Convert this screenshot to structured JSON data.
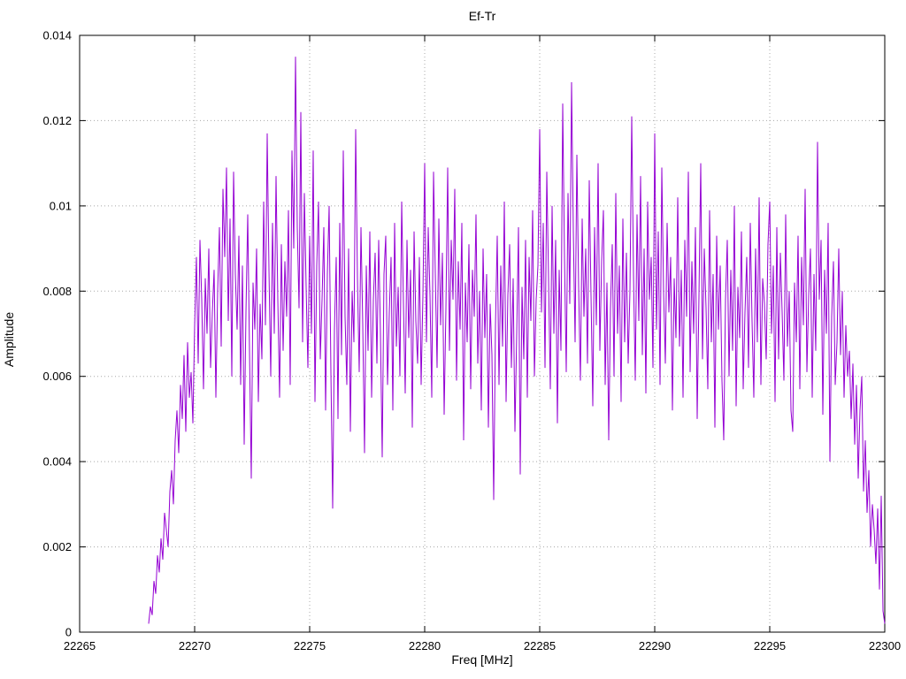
{
  "chart_data": {
    "type": "line",
    "title": "Ef-Tr",
    "xlabel": "Freq [MHz]",
    "ylabel": "Amplitude",
    "xlim": [
      22265,
      22300
    ],
    "ylim": [
      0,
      0.014
    ],
    "x_ticks": [
      22265,
      22270,
      22275,
      22280,
      22285,
      22290,
      22295,
      22300
    ],
    "x_tick_labels": [
      "22265",
      "22270",
      "22275",
      "22280",
      "22285",
      "22290",
      "22295",
      "22300"
    ],
    "y_ticks": [
      0,
      0.002,
      0.004,
      0.006,
      0.008,
      0.01,
      0.012,
      0.014
    ],
    "y_tick_labels": [
      "0",
      "0.002",
      "0.004",
      "0.006",
      "0.008",
      "0.01",
      "0.012",
      "0.014"
    ],
    "grid": true,
    "legend": "none",
    "line_color": "#9400d3",
    "x_start": 22268,
    "x_end": 22300,
    "values_scale": 0.0001,
    "values": [
      2,
      6,
      4,
      12,
      9,
      18,
      14,
      22,
      17,
      28,
      24,
      20,
      33,
      38,
      30,
      45,
      52,
      42,
      58,
      50,
      65,
      47,
      68,
      55,
      61,
      49,
      72,
      88,
      63,
      92,
      78,
      57,
      83,
      70,
      90,
      62,
      75,
      85,
      55,
      80,
      95,
      67,
      104,
      88,
      109,
      73,
      97,
      60,
      108,
      84,
      71,
      93,
      58,
      86,
      44,
      75,
      98,
      66,
      36,
      82,
      71,
      90,
      54,
      77,
      64,
      101,
      72,
      117,
      85,
      60,
      96,
      70,
      107,
      78,
      55,
      91,
      66,
      87,
      74,
      99,
      58,
      113,
      90,
      135,
      95,
      76,
      122,
      68,
      103,
      81,
      62,
      93,
      70,
      113,
      54,
      86,
      101,
      64,
      78,
      95,
      52,
      84,
      100,
      61,
      29,
      71,
      88,
      50,
      96,
      65,
      113,
      74,
      58,
      90,
      47,
      80,
      68,
      118,
      83,
      61,
      95,
      72,
      42,
      86,
      66,
      94,
      55,
      78,
      89,
      63,
      92,
      70,
      41,
      84,
      93,
      58,
      75,
      88,
      52,
      96,
      67,
      81,
      60,
      101,
      77,
      56,
      92,
      69,
      85,
      48,
      94,
      73,
      63,
      88,
      58,
      79,
      110,
      68,
      95,
      79,
      55,
      108,
      84,
      62,
      97,
      72,
      89,
      51,
      76,
      109,
      66,
      92,
      78,
      104,
      59,
      87,
      71,
      96,
      45,
      82,
      68,
      91,
      57,
      85,
      74,
      98,
      63,
      80,
      52,
      90,
      69,
      84,
      48,
      77,
      65,
      31,
      72,
      93,
      58,
      86,
      67,
      101,
      54,
      79,
      91,
      62,
      83,
      47,
      70,
      95,
      37,
      81,
      64,
      92,
      55,
      88,
      73,
      99,
      60,
      78,
      86,
      118,
      75,
      96,
      62,
      108,
      83,
      57,
      100,
      70,
      92,
      49,
      85,
      66,
      124,
      88,
      61,
      103,
      77,
      129,
      94,
      68,
      112,
      81,
      59,
      97,
      74,
      90,
      63,
      106,
      79,
      53,
      95,
      72,
      110,
      66,
      87,
      99,
      58,
      82,
      45,
      76,
      91,
      60,
      103,
      70,
      86,
      54,
      97,
      68,
      89,
      63,
      80,
      121,
      84,
      59,
      98,
      73,
      107,
      65,
      90,
      56,
      101,
      78,
      88,
      62,
      117,
      71,
      94,
      58,
      109,
      80,
      63,
      96,
      75,
      88,
      52,
      83,
      69,
      102,
      67,
      85,
      55,
      92,
      74,
      108,
      61,
      87,
      70,
      95,
      50,
      79,
      110,
      64,
      90,
      76,
      57,
      99,
      68,
      84,
      48,
      93,
      71,
      86,
      59,
      45,
      78,
      92,
      60,
      85,
      66,
      100,
      53,
      81,
      69,
      94,
      57,
      75,
      88,
      62,
      96,
      73,
      55,
      90,
      68,
      102,
      58,
      83,
      77,
      64,
      91,
      101,
      70,
      86,
      54,
      95,
      64,
      89,
      75,
      59,
      98,
      67,
      80,
      52,
      47,
      82,
      68,
      93,
      57,
      88,
      72,
      104,
      61,
      79,
      90,
      55,
      84,
      66,
      115,
      78,
      92,
      51,
      85,
      70,
      96,
      40,
      74,
      87,
      58,
      68,
      90,
      65,
      80,
      55,
      72,
      60,
      66,
      50,
      63,
      44,
      58,
      36,
      52,
      60,
      33,
      45,
      28,
      38,
      20,
      30,
      24,
      16,
      29,
      10,
      32,
      5,
      2
    ]
  }
}
